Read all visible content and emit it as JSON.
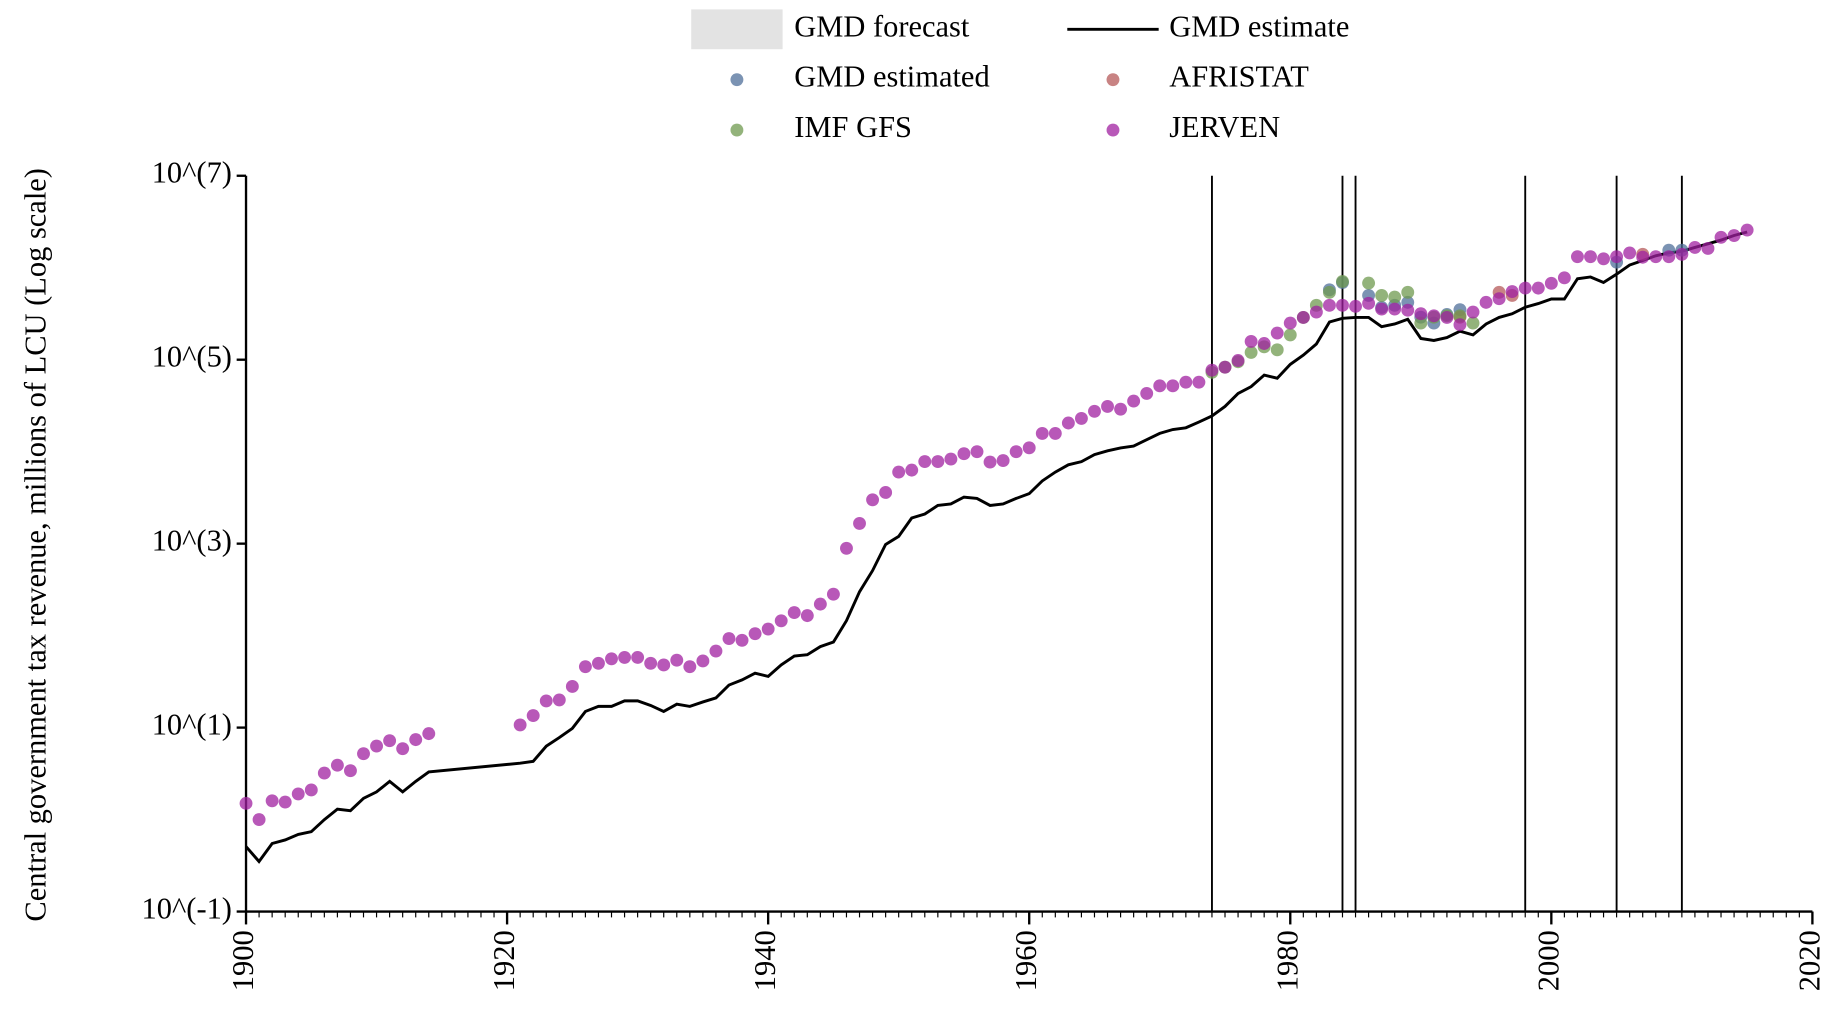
{
  "chart_data": {
    "type": "line",
    "y_label": "Central government tax revenue, millions of LCU (Log scale)",
    "log_scale": true,
    "xlim": [
      1900,
      2020
    ],
    "xticks": [
      1900,
      1920,
      1940,
      1960,
      1980,
      2000,
      2020
    ],
    "ylim": [
      0.1,
      10000000
    ],
    "yticks": [
      {
        "value": 0.1,
        "label": "10^(-1)"
      },
      {
        "value": 10,
        "label": "10^(1)"
      },
      {
        "value": 1000,
        "label": "10^(3)"
      },
      {
        "value": 100000,
        "label": "10^(5)"
      },
      {
        "value": 10000000,
        "label": "10^(7)"
      }
    ],
    "vlines": [
      1974,
      1984,
      1985,
      1998,
      2005,
      2010
    ],
    "series": [
      {
        "name": "GMD forecast",
        "type": "area",
        "color": "#e3e3e3",
        "x": [],
        "values": []
      },
      {
        "name": "GMD estimate",
        "type": "line",
        "color": "#000000",
        "x": [
          1900,
          1901,
          1902,
          1903,
          1904,
          1905,
          1906,
          1907,
          1908,
          1909,
          1910,
          1911,
          1912,
          1913,
          1914,
          1921,
          1922,
          1923,
          1924,
          1925,
          1926,
          1927,
          1928,
          1929,
          1930,
          1931,
          1932,
          1933,
          1934,
          1935,
          1936,
          1937,
          1938,
          1939,
          1940,
          1941,
          1942,
          1943,
          1944,
          1945,
          1946,
          1947,
          1948,
          1949,
          1950,
          1951,
          1952,
          1953,
          1954,
          1955,
          1956,
          1957,
          1958,
          1959,
          1960,
          1961,
          1962,
          1963,
          1964,
          1965,
          1966,
          1967,
          1968,
          1969,
          1970,
          1971,
          1972,
          1973,
          1974,
          1975,
          1976,
          1977,
          1978,
          1979,
          1980,
          1981,
          1982,
          1983,
          1984,
          1985,
          1986,
          1987,
          1988,
          1989,
          1990,
          1991,
          1992,
          1993,
          1994,
          1995,
          1996,
          1997,
          1998,
          1999,
          2000,
          2001,
          2002,
          2003,
          2004,
          2005,
          2006,
          2007,
          2008,
          2009,
          2010,
          2011,
          2012,
          2013,
          2014,
          2015
        ],
        "values": [
          0.51,
          0.35,
          0.55,
          0.6,
          0.69,
          0.74,
          1.0,
          1.3,
          1.25,
          1.7,
          2.0,
          2.6,
          2.0,
          2.6,
          3.3,
          4.1,
          4.3,
          6.3,
          7.8,
          9.8,
          15,
          17,
          17,
          19.5,
          19.5,
          17.4,
          15,
          18,
          17,
          19,
          21,
          29,
          33,
          39,
          36,
          48,
          60,
          62,
          76,
          85,
          145,
          300,
          510,
          980,
          1200,
          1900,
          2100,
          2600,
          2700,
          3200,
          3100,
          2600,
          2700,
          3100,
          3500,
          4800,
          6000,
          7200,
          7800,
          9300,
          10200,
          11000,
          11500,
          13500,
          15800,
          17400,
          18200,
          21000,
          24500,
          31000,
          43000,
          51000,
          68000,
          63000,
          89000,
          112000,
          148000,
          257000,
          282000,
          288000,
          288000,
          229000,
          245000,
          275000,
          170000,
          162000,
          174000,
          204000,
          186000,
          245000,
          288000,
          316000,
          372000,
          407000,
          457000,
          457000,
          759000,
          794000,
          692000,
          851000,
          1070000,
          1200000,
          1350000,
          1450000,
          1510000,
          1660000,
          1820000,
          2000000,
          2240000,
          2450000
        ]
      },
      {
        "name": "GMD estimated",
        "type": "scatter",
        "color": "#4f6f9a",
        "x": [
          1983,
          1984,
          1986,
          1987,
          1988,
          1989,
          1990,
          1991,
          1992,
          1993,
          2005,
          2009,
          2010
        ],
        "values": [
          575000,
          690000,
          500000,
          370000,
          390000,
          420000,
          290000,
          250000,
          310000,
          350000,
          1150000,
          1550000,
          1550000
        ]
      },
      {
        "name": "AFRISTAT",
        "type": "scatter",
        "color": "#b55a5a",
        "x": [
          1993,
          1996,
          1997,
          2007
        ],
        "values": [
          290000,
          540000,
          500000,
          1400000
        ]
      },
      {
        "name": "IMF GFS",
        "type": "scatter",
        "color": "#6f9a4f",
        "x": [
          1974,
          1975,
          1976,
          1977,
          1978,
          1979,
          1980,
          1981,
          1982,
          1983,
          1984,
          1986,
          1987,
          1988,
          1989,
          1990,
          1991,
          1992,
          1993,
          1994
        ],
        "values": [
          73000,
          83000,
          95000,
          120000,
          138000,
          128000,
          186000,
          288000,
          390000,
          540000,
          710000,
          680000,
          500000,
          480000,
          540000,
          250000,
          290000,
          300000,
          300000,
          250000
        ]
      },
      {
        "name": "JERVEN",
        "type": "scatter",
        "color": "#a020a0",
        "x": [
          1900,
          1901,
          1902,
          1903,
          1904,
          1905,
          1906,
          1907,
          1908,
          1909,
          1910,
          1911,
          1912,
          1913,
          1914,
          1921,
          1922,
          1923,
          1924,
          1925,
          1926,
          1927,
          1928,
          1929,
          1930,
          1931,
          1932,
          1933,
          1934,
          1935,
          1936,
          1937,
          1938,
          1939,
          1940,
          1941,
          1942,
          1943,
          1944,
          1945,
          1946,
          1947,
          1948,
          1949,
          1950,
          1951,
          1952,
          1953,
          1954,
          1955,
          1956,
          1957,
          1958,
          1959,
          1960,
          1961,
          1962,
          1963,
          1964,
          1965,
          1966,
          1967,
          1968,
          1969,
          1970,
          1971,
          1972,
          1973,
          1974,
          1975,
          1976,
          1977,
          1978,
          1979,
          1980,
          1981,
          1982,
          1983,
          1984,
          1985,
          1986,
          1987,
          1988,
          1989,
          1990,
          1991,
          1992,
          1993,
          1994,
          1995,
          1996,
          1997,
          1998,
          1999,
          2000,
          2001,
          2002,
          2003,
          2004,
          2005,
          2006,
          2007,
          2008,
          2009,
          2010,
          2011,
          2012,
          2013,
          2014,
          2015
        ],
        "values": [
          1.5,
          1.0,
          1.6,
          1.55,
          1.9,
          2.1,
          3.2,
          3.9,
          3.4,
          5.2,
          6.3,
          7.2,
          5.9,
          7.4,
          8.6,
          10.7,
          13.5,
          19.5,
          20,
          28,
          46,
          50,
          56,
          58,
          58,
          50,
          48,
          54,
          46,
          53,
          68,
          93,
          89,
          105,
          118,
          145,
          178,
          165,
          220,
          282,
          890,
          1660,
          3000,
          3600,
          6000,
          6300,
          7800,
          7800,
          8300,
          9500,
          10000,
          7700,
          8000,
          10000,
          11000,
          15800,
          15800,
          20500,
          23000,
          27500,
          31000,
          29000,
          35500,
          43000,
          52000,
          52000,
          57000,
          57000,
          77000,
          83000,
          98000,
          158000,
          150000,
          195000,
          250000,
          288000,
          330000,
          390000,
          390000,
          380000,
          410000,
          355000,
          355000,
          345000,
          316000,
          300000,
          288000,
          240000,
          330000,
          420000,
          460000,
          550000,
          600000,
          600000,
          676000,
          776000,
          1320000,
          1320000,
          1250000,
          1320000,
          1450000,
          1300000,
          1320000,
          1320000,
          1400000,
          1660000,
          1620000,
          2140000,
          2240000,
          2570000
        ]
      }
    ]
  }
}
